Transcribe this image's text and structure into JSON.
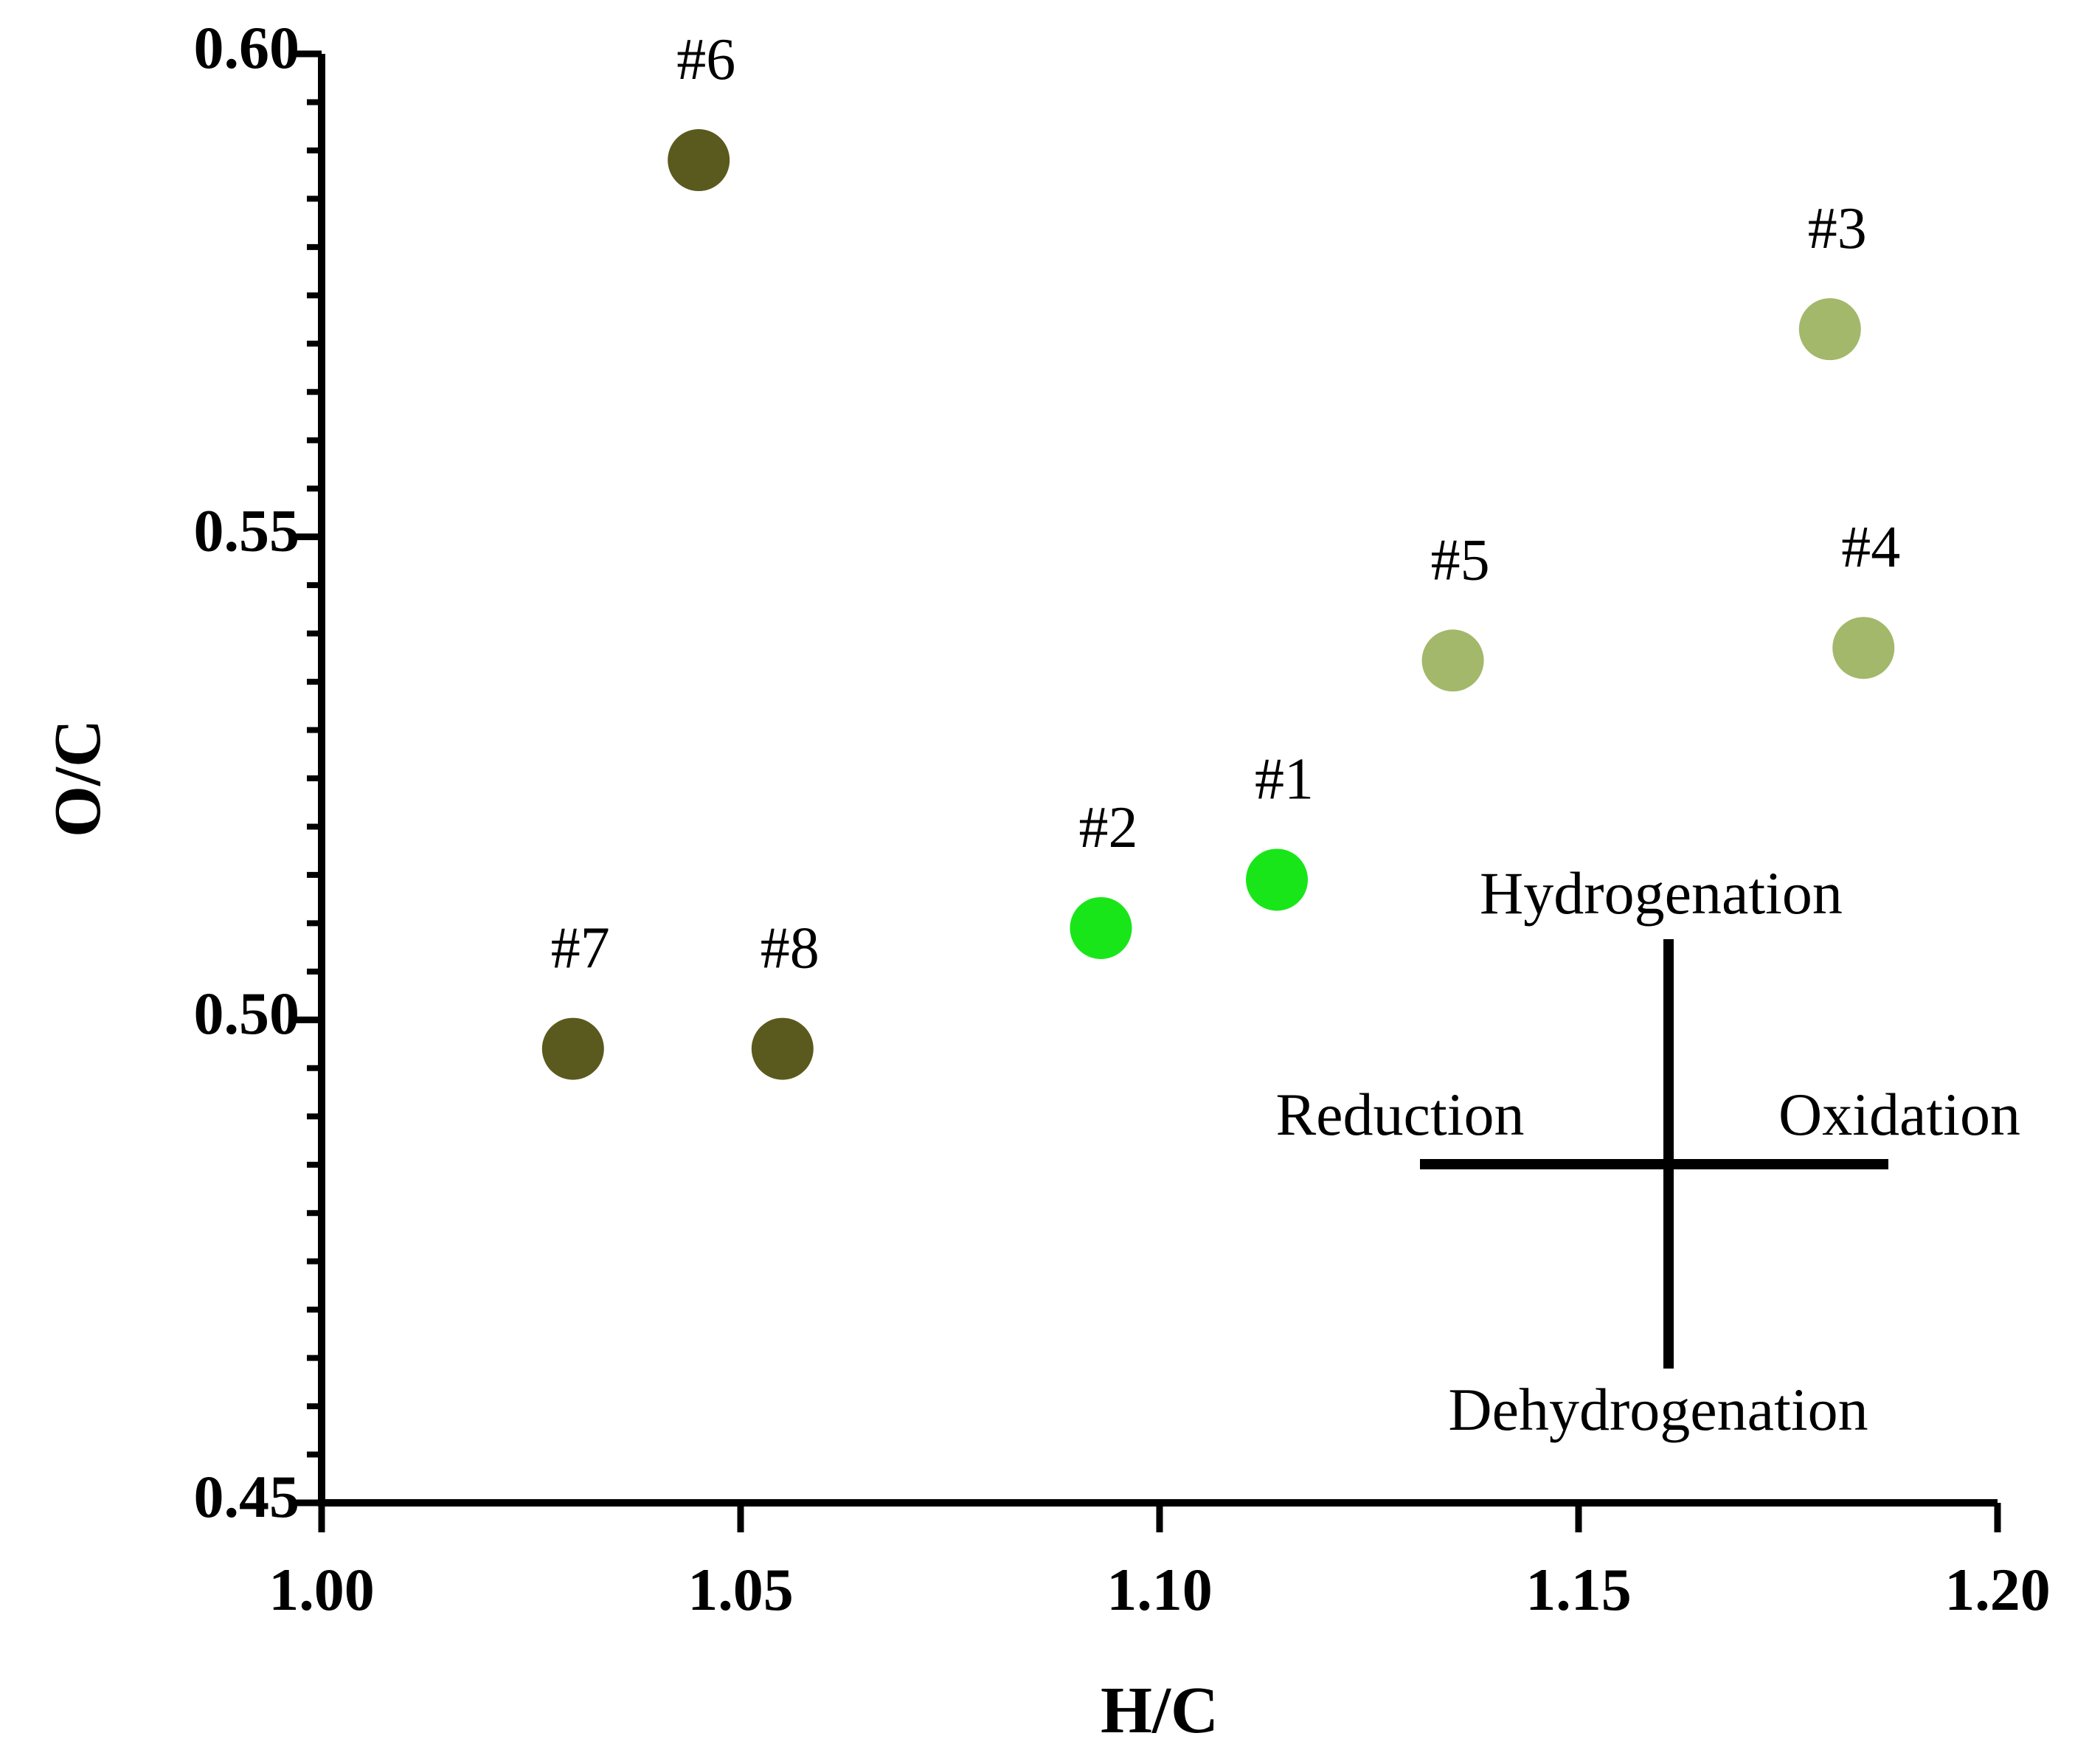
{
  "chart_data": {
    "type": "scatter",
    "title": "",
    "xlabel": "H/C",
    "ylabel": "O/C",
    "xlim": [
      1.0,
      1.2
    ],
    "ylim": [
      0.45,
      0.6
    ],
    "x_ticks": [
      "1.00",
      "1.05",
      "1.10",
      "1.15",
      "1.20"
    ],
    "y_ticks": [
      "0.45",
      "0.50",
      "0.55",
      "0.60"
    ],
    "grid": false,
    "points": [
      {
        "label": "#1",
        "x": 1.114,
        "y": 0.5145,
        "color": "#19e619"
      },
      {
        "label": "#2",
        "x": 1.093,
        "y": 0.5095,
        "color": "#19e619"
      },
      {
        "label": "#3",
        "x": 1.18,
        "y": 0.5715,
        "color": "#a3b86a"
      },
      {
        "label": "#4",
        "x": 1.184,
        "y": 0.5385,
        "color": "#a3b86a"
      },
      {
        "label": "#5",
        "x": 1.135,
        "y": 0.5372,
        "color": "#a3b86a"
      },
      {
        "label": "#6",
        "x": 1.045,
        "y": 0.589,
        "color": "#5b5a1e"
      },
      {
        "label": "#7",
        "x": 1.03,
        "y": 0.497,
        "color": "#5b5a1e"
      },
      {
        "label": "#8",
        "x": 1.055,
        "y": 0.497,
        "color": "#5b5a1e"
      }
    ],
    "annotations": {
      "top": "Hydrogenation",
      "bottom": "Dehydrogenation",
      "left": "Reduction",
      "right": "Oxidation"
    }
  }
}
